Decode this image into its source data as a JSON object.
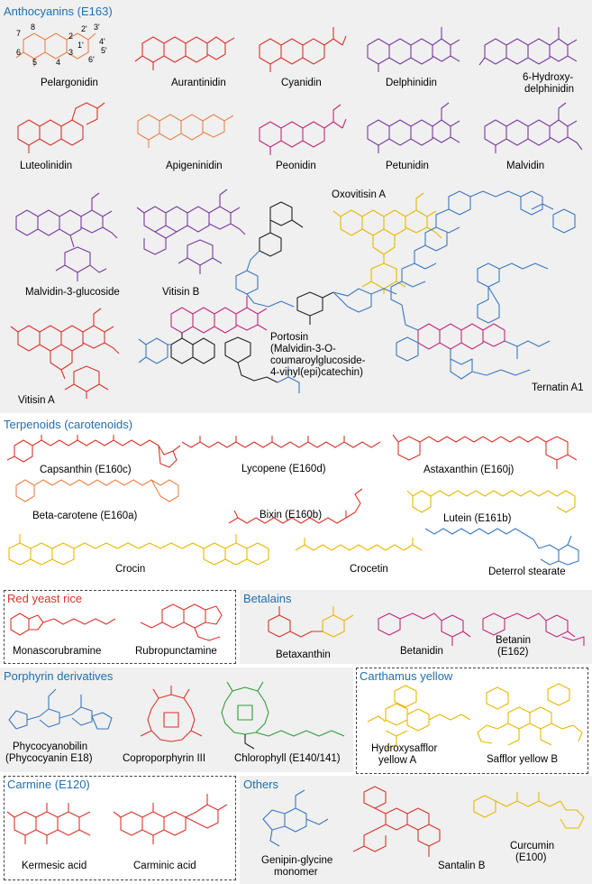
{
  "sections": {
    "anthocyanins": {
      "title": "Anthocyanins (E163)",
      "labels": {
        "pelargonidin": "Pelargonidin",
        "aurantinidin": "Aurantinidin",
        "cyanidin": "Cyanidin",
        "delphinidin": "Delphinidin",
        "hydroxydelphinidin_1": "6-Hydroxy-",
        "hydroxydelphinidin_2": "delphinidin",
        "luteolinidin": "Luteolinidin",
        "apigeninidin": "Apigeninidin",
        "peonidin": "Peonidin",
        "petunidin": "Petunidin",
        "malvidin": "Malvidin",
        "malvidin3glucoside": "Malvidin-3-glucoside",
        "vitisin_b": "Vitisin B",
        "oxovitisin_a": "Oxovitisin A",
        "portosin_1": "Portosin",
        "portosin_2": "(Malvidin-3-O-",
        "portosin_3": "coumaroylglucoside-",
        "portosin_4": "4-vinyl(epi)catechin)",
        "vitisin_a": "Vitisin A",
        "ternatin_a1": "Ternatin A1"
      },
      "ring_numbers": [
        "8",
        "7",
        "6",
        "5",
        "4",
        "3",
        "2",
        "1'",
        "2'",
        "3'",
        "4'",
        "5'",
        "6'"
      ]
    },
    "terpenoids": {
      "title": "Terpenoids (carotenoids)",
      "labels": {
        "capsanthin": "Capsanthin (E160c)",
        "lycopene": "Lycopene (E160d)",
        "astaxanthin": "Astaxanthin (E160j)",
        "beta_carotene": "Beta-carotene (E160a)",
        "bixin": "Bixin (E160b)",
        "lutein": "Lutein (E161b)",
        "crocin": "Crocin",
        "crocetin": "Crocetin",
        "deterrol_stearate": "Deterrol stearate"
      }
    },
    "red_yeast_rice": {
      "title": "Red yeast rice",
      "labels": {
        "monascorubramine": "Monascorubramine",
        "rubropunctamine": "Rubropunctamine"
      }
    },
    "betalains": {
      "title": "Betalains",
      "labels": {
        "betaxanthin": "Betaxanthin",
        "betanidin": "Betanidin",
        "betanin_1": "Betanin",
        "betanin_2": "(E162)"
      }
    },
    "porphyrin": {
      "title": "Porphyrin derivatives",
      "labels": {
        "phycocyanobilin_1": "Phycocyanobilin",
        "phycocyanobilin_2": "(Phycocyanin E18)",
        "coproporphyrin": "Coproporphyrin III",
        "chlorophyll": "Chlorophyll (E140/141)"
      }
    },
    "carthamus": {
      "title": "Carthamus yellow",
      "labels": {
        "hsya_1": "Hydroxysafflor",
        "hsya_2": "yellow A",
        "syb": "Safflor yellow B"
      }
    },
    "carmine": {
      "title": "Carmine (E120)",
      "labels": {
        "kermesic": "Kermesic acid",
        "carminic": "Carminic acid"
      }
    },
    "others": {
      "title": "Others",
      "labels": {
        "genipin_1": "Genipin-glycine",
        "genipin_2": "monomer",
        "santalin": "Santalin B",
        "curcumin_1": "Curcumin",
        "curcumin_2": "(E100)"
      }
    }
  },
  "colors": {
    "section_title": "#1f6fb0",
    "orange": "#e8834a",
    "red": "#d9342b",
    "magenta": "#c0287a",
    "purple": "#7a3a9e",
    "yellow": "#e8b800",
    "blue": "#3a78c2",
    "green": "#2e9e3a",
    "black": "#222222",
    "panel_grey": "#f0f0f0"
  }
}
